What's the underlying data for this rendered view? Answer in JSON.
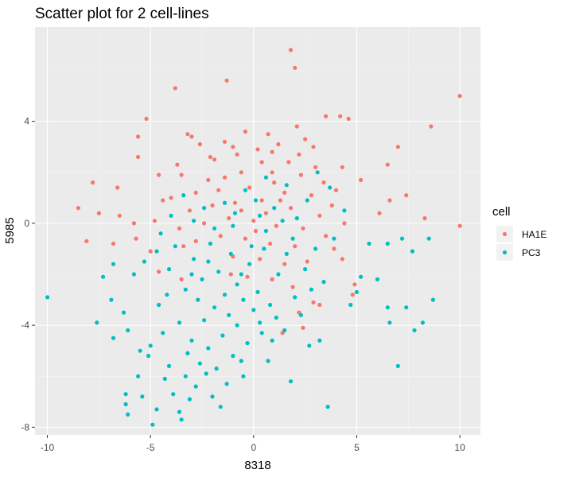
{
  "chart_data": {
    "type": "scatter",
    "title": "Scatter plot for 2 cell-lines",
    "xlabel": "8318",
    "ylabel": "5985",
    "xlim": [
      -10.6,
      11.0
    ],
    "ylim": [
      -8.3,
      7.7
    ],
    "x_ticks": [
      -10,
      -5,
      0,
      5,
      10
    ],
    "y_ticks": [
      -8,
      -4,
      0,
      4
    ],
    "x_tick_labels": [
      "-10",
      "-5",
      "0",
      "5",
      "10"
    ],
    "y_tick_labels": [
      "-8",
      "-4",
      "0",
      "4"
    ],
    "grid": true,
    "legend": {
      "title": "cell",
      "position": "right"
    },
    "colors": {
      "panel": "#ebebeb",
      "grid_major": "#ffffff",
      "grid_minor": "#f4f4f4"
    },
    "series": [
      {
        "name": "HA1E",
        "color": "#F8766D",
        "points": [
          [
            1.8,
            6.8
          ],
          [
            2.0,
            6.1
          ],
          [
            10.0,
            5.0
          ],
          [
            -3.8,
            5.3
          ],
          [
            -1.3,
            5.6
          ],
          [
            -5.2,
            4.1
          ],
          [
            3.5,
            4.2
          ],
          [
            4.2,
            4.2
          ],
          [
            4.6,
            4.1
          ],
          [
            8.6,
            3.8
          ],
          [
            -5.6,
            3.4
          ],
          [
            -3.2,
            3.5
          ],
          [
            7.0,
            3.0
          ],
          [
            -5.6,
            2.6
          ],
          [
            4.3,
            2.2
          ],
          [
            6.5,
            2.3
          ],
          [
            5.2,
            1.7
          ],
          [
            -4.6,
            1.9
          ],
          [
            -7.8,
            1.6
          ],
          [
            -6.6,
            1.4
          ],
          [
            7.4,
            1.1
          ],
          [
            6.6,
            0.9
          ],
          [
            -8.5,
            0.6
          ],
          [
            -7.5,
            0.4
          ],
          [
            -6.5,
            0.3
          ],
          [
            -5.8,
            0.0
          ],
          [
            8.3,
            0.2
          ],
          [
            10.0,
            -0.1
          ],
          [
            6.1,
            0.4
          ],
          [
            -8.1,
            -0.7
          ],
          [
            -5.7,
            -0.6
          ],
          [
            -6.8,
            -0.8
          ],
          [
            -5.0,
            -1.1
          ],
          [
            -4.6,
            -1.9
          ],
          [
            -3.5,
            -2.2
          ],
          [
            4.3,
            -1.4
          ],
          [
            4.9,
            -2.4
          ],
          [
            4.8,
            -2.8
          ],
          [
            2.9,
            -3.1
          ],
          [
            3.2,
            -3.2
          ],
          [
            2.2,
            -3.5
          ],
          [
            2.4,
            -4.1
          ],
          [
            1.4,
            -4.3
          ],
          [
            -3.0,
            3.4
          ],
          [
            -2.6,
            3.1
          ],
          [
            -1.4,
            3.2
          ],
          [
            -0.4,
            3.6
          ],
          [
            0.7,
            3.5
          ],
          [
            2.1,
            3.8
          ],
          [
            2.5,
            3.3
          ],
          [
            2.9,
            3.0
          ],
          [
            1.2,
            3.1
          ],
          [
            -0.8,
            2.7
          ],
          [
            0.2,
            2.9
          ],
          [
            1.7,
            2.4
          ],
          [
            -1.9,
            2.5
          ],
          [
            -3.5,
            1.9
          ],
          [
            -2.2,
            1.7
          ],
          [
            -0.6,
            2.0
          ],
          [
            0.9,
            2.0
          ],
          [
            2.3,
            1.9
          ],
          [
            3.4,
            1.6
          ],
          [
            -4.0,
            1.0
          ],
          [
            -2.8,
            1.2
          ],
          [
            -1.7,
            1.3
          ],
          [
            -0.2,
            1.4
          ],
          [
            1.5,
            1.2
          ],
          [
            2.8,
            1.1
          ],
          [
            3.8,
            0.7
          ],
          [
            -3.1,
            0.5
          ],
          [
            -2.0,
            0.7
          ],
          [
            -0.9,
            0.8
          ],
          [
            0.4,
            0.9
          ],
          [
            1.8,
            0.6
          ],
          [
            3.2,
            0.3
          ],
          [
            -3.6,
            -0.2
          ],
          [
            -2.4,
            0.0
          ],
          [
            -1.2,
            0.2
          ],
          [
            0.0,
            0.1
          ],
          [
            1.1,
            -0.1
          ],
          [
            2.4,
            -0.2
          ],
          [
            3.5,
            -0.5
          ],
          [
            -2.8,
            -0.7
          ],
          [
            -1.6,
            -0.5
          ],
          [
            -0.4,
            -0.6
          ],
          [
            0.8,
            -0.8
          ],
          [
            2.0,
            -0.9
          ],
          [
            -1.0,
            -1.3
          ],
          [
            0.3,
            -1.4
          ],
          [
            1.5,
            -1.6
          ],
          [
            2.6,
            -1.5
          ],
          [
            -0.3,
            -2.1
          ],
          [
            0.9,
            -2.2
          ],
          [
            1.9,
            -2.5
          ],
          [
            -1.1,
            -2.0
          ],
          [
            0.1,
            -0.3
          ],
          [
            -0.6,
            0.5
          ],
          [
            0.6,
            0.4
          ],
          [
            1.3,
            0.9
          ],
          [
            -1.4,
            1.8
          ],
          [
            0.4,
            2.4
          ],
          [
            1.0,
            1.6
          ],
          [
            -2.1,
            2.6
          ],
          [
            -1.0,
            3.0
          ],
          [
            0.9,
            2.8
          ],
          [
            2.2,
            2.7
          ],
          [
            -3.7,
            2.3
          ],
          [
            3.0,
            2.2
          ],
          [
            -4.4,
            0.9
          ],
          [
            -3.4,
            -0.9
          ],
          [
            4.0,
            1.3
          ],
          [
            4.4,
            0.0
          ],
          [
            -4.8,
            0.1
          ],
          [
            3.9,
            -1.0
          ]
        ]
      },
      {
        "name": "PC3",
        "color": "#00BFC4",
        "points": [
          [
            -10.0,
            -2.9
          ],
          [
            -7.6,
            -3.9
          ],
          [
            -7.3,
            -2.1
          ],
          [
            -6.8,
            -1.6
          ],
          [
            -6.9,
            -3.0
          ],
          [
            -6.8,
            -4.5
          ],
          [
            -6.3,
            -3.5
          ],
          [
            -6.1,
            -4.2
          ],
          [
            -6.2,
            -6.7
          ],
          [
            -6.2,
            -7.1
          ],
          [
            -6.1,
            -7.5
          ],
          [
            -5.8,
            -2.0
          ],
          [
            -5.5,
            -5.0
          ],
          [
            -5.6,
            -6.0
          ],
          [
            -5.4,
            -6.8
          ],
          [
            -5.1,
            -5.2
          ],
          [
            -5.0,
            -4.8
          ],
          [
            -4.9,
            -7.9
          ],
          [
            -4.7,
            -7.3
          ],
          [
            -4.6,
            -3.2
          ],
          [
            -4.4,
            -4.3
          ],
          [
            -4.3,
            -6.1
          ],
          [
            -4.1,
            -5.6
          ],
          [
            -3.9,
            -6.7
          ],
          [
            -3.6,
            -7.4
          ],
          [
            -3.5,
            -7.7
          ],
          [
            -3.3,
            -6.0
          ],
          [
            -3.2,
            -5.1
          ],
          [
            -3.0,
            -4.6
          ],
          [
            -2.8,
            -6.4
          ],
          [
            -2.6,
            -5.5
          ],
          [
            -2.4,
            -3.8
          ],
          [
            -2.2,
            -4.9
          ],
          [
            -2.0,
            -6.8
          ],
          [
            -1.8,
            -5.7
          ],
          [
            -1.5,
            -4.4
          ],
          [
            -1.3,
            -6.3
          ],
          [
            -1.0,
            -5.2
          ],
          [
            -0.8,
            -4.0
          ],
          [
            -0.5,
            -6.0
          ],
          [
            -0.3,
            -4.7
          ],
          [
            0.0,
            -3.4
          ],
          [
            0.4,
            -4.3
          ],
          [
            0.7,
            -5.4
          ],
          [
            1.1,
            -3.7
          ],
          [
            1.5,
            -4.2
          ],
          [
            1.8,
            -6.2
          ],
          [
            2.3,
            -3.6
          ],
          [
            2.7,
            -4.8
          ],
          [
            3.2,
            -4.6
          ],
          [
            3.6,
            -7.2
          ],
          [
            4.7,
            -3.2
          ],
          [
            5.0,
            -2.7
          ],
          [
            5.2,
            -2.1
          ],
          [
            5.6,
            -0.8
          ],
          [
            6.0,
            -2.2
          ],
          [
            6.5,
            -0.8
          ],
          [
            6.5,
            -3.3
          ],
          [
            6.6,
            -3.9
          ],
          [
            7.0,
            -5.6
          ],
          [
            7.2,
            -0.6
          ],
          [
            7.4,
            -3.3
          ],
          [
            7.7,
            -1.1
          ],
          [
            7.8,
            -4.2
          ],
          [
            8.2,
            -3.9
          ],
          [
            8.5,
            -0.6
          ],
          [
            8.7,
            -3.0
          ],
          [
            -5.3,
            -1.5
          ],
          [
            -4.7,
            -1.1
          ],
          [
            -4.1,
            -1.8
          ],
          [
            -3.8,
            -0.9
          ],
          [
            -3.3,
            -2.6
          ],
          [
            -2.9,
            -1.4
          ],
          [
            -2.5,
            -2.2
          ],
          [
            -2.1,
            -0.8
          ],
          [
            -1.7,
            -1.9
          ],
          [
            -1.4,
            -2.8
          ],
          [
            -1.1,
            -1.2
          ],
          [
            -0.8,
            -2.4
          ],
          [
            -0.5,
            -3.0
          ],
          [
            -0.2,
            -1.6
          ],
          [
            0.2,
            -2.7
          ],
          [
            0.5,
            -1.0
          ],
          [
            0.8,
            -3.2
          ],
          [
            1.2,
            -2.0
          ],
          [
            1.6,
            -1.2
          ],
          [
            2.0,
            -2.9
          ],
          [
            2.5,
            -1.8
          ],
          [
            3.0,
            -1.0
          ],
          [
            3.4,
            -2.3
          ],
          [
            3.9,
            -0.6
          ],
          [
            4.4,
            0.5
          ],
          [
            3.7,
            1.4
          ],
          [
            3.1,
            2.0
          ],
          [
            2.6,
            0.9
          ],
          [
            2.1,
            0.2
          ],
          [
            1.6,
            1.5
          ],
          [
            1.0,
            0.6
          ],
          [
            0.6,
            1.8
          ],
          [
            0.1,
            0.9
          ],
          [
            -0.4,
            1.3
          ],
          [
            -0.9,
            0.4
          ],
          [
            -1.4,
            0.8
          ],
          [
            -1.9,
            -0.2
          ],
          [
            -2.4,
            0.6
          ],
          [
            -2.9,
            0.1
          ],
          [
            -3.4,
            1.1
          ],
          [
            -4.0,
            0.3
          ],
          [
            -4.5,
            -0.4
          ],
          [
            -1.2,
            -3.6
          ],
          [
            -1.9,
            -3.3
          ],
          [
            -2.7,
            -3.0
          ],
          [
            -3.6,
            -3.9
          ],
          [
            -4.2,
            -2.8
          ],
          [
            0.3,
            -3.9
          ],
          [
            0.9,
            -4.6
          ],
          [
            -0.6,
            -5.4
          ],
          [
            -2.3,
            -5.9
          ],
          [
            -3.1,
            -6.9
          ],
          [
            -1.6,
            -7.2
          ],
          [
            0.6,
            -0.3
          ],
          [
            -0.1,
            -0.9
          ],
          [
            1.4,
            0.1
          ],
          [
            -1.0,
            -0.1
          ],
          [
            0.3,
            0.3
          ],
          [
            -0.6,
            -2.0
          ],
          [
            1.9,
            -0.6
          ],
          [
            -2.2,
            -1.5
          ],
          [
            2.8,
            -2.6
          ],
          [
            -3.0,
            -2.0
          ]
        ]
      }
    ]
  }
}
